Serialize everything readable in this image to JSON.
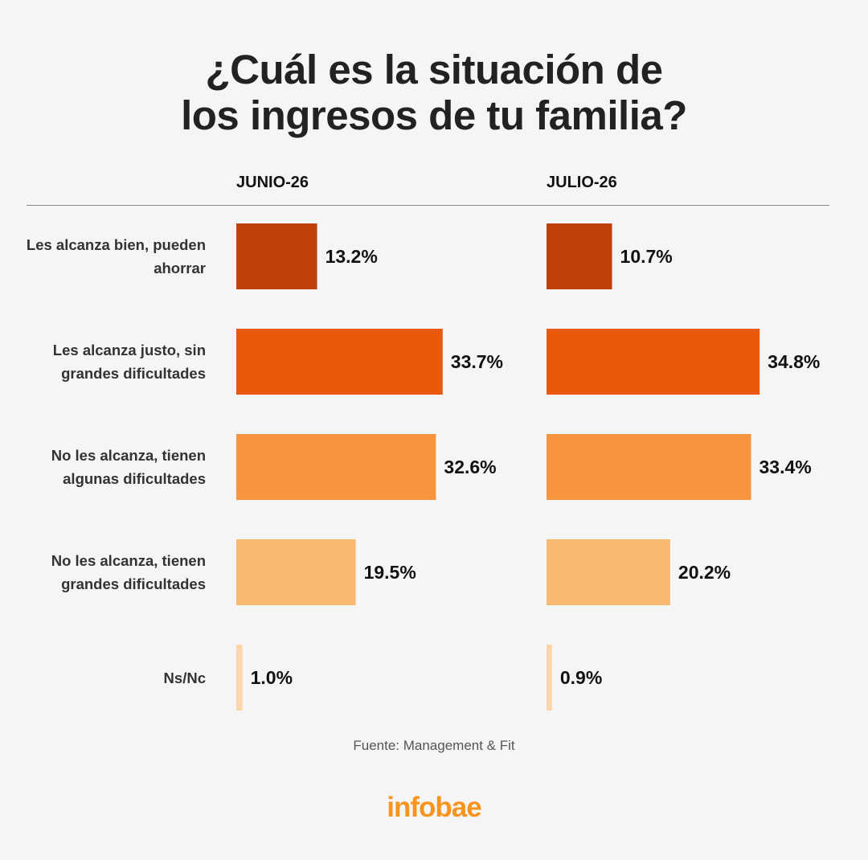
{
  "title": {
    "line1": "¿Cuál es la situación de",
    "line2": "los ingresos de tu familia?"
  },
  "chart_data": {
    "type": "bar",
    "orientation": "horizontal",
    "title": "¿Cuál es la situación de los ingresos de tu familia?",
    "categories": [
      "Les alcanza bien, pueden ahorrar",
      "Les alcanza justo, sin grandes dificultades",
      "No les alcanza, tienen algunas dificultades",
      "No les alcanza, tienen grandes dificultades",
      "Ns/Nc"
    ],
    "category_lines": [
      [
        "Les alcanza bien, pueden",
        "ahorrar"
      ],
      [
        "Les alcanza justo, sin",
        "grandes dificultades"
      ],
      [
        "No les alcanza, tienen",
        "algunas dificultades"
      ],
      [
        "No les alcanza, tienen",
        "grandes dificultades"
      ],
      [
        "Ns/Nc"
      ]
    ],
    "series": [
      {
        "name": "JUNIO-26",
        "values": [
          13.2,
          33.7,
          32.6,
          19.5,
          1.0
        ],
        "labels": [
          "13.2%",
          "33.7%",
          "32.6%",
          "19.5%",
          "1.0%"
        ]
      },
      {
        "name": "JULIO-26",
        "values": [
          10.7,
          34.8,
          33.4,
          20.2,
          0.9
        ],
        "labels": [
          "10.7%",
          "34.8%",
          "33.4%",
          "20.2%",
          "0.9%"
        ]
      }
    ],
    "unit": "%",
    "category_colors": [
      "#c0410b",
      "#e8590c",
      "#f8943e",
      "#fbb871",
      "#fdd5aa"
    ],
    "grid": false,
    "legend": "none"
  },
  "source": "Fuente: Management & Fit",
  "brand": {
    "name": "infobae",
    "color": "#f7941d"
  }
}
